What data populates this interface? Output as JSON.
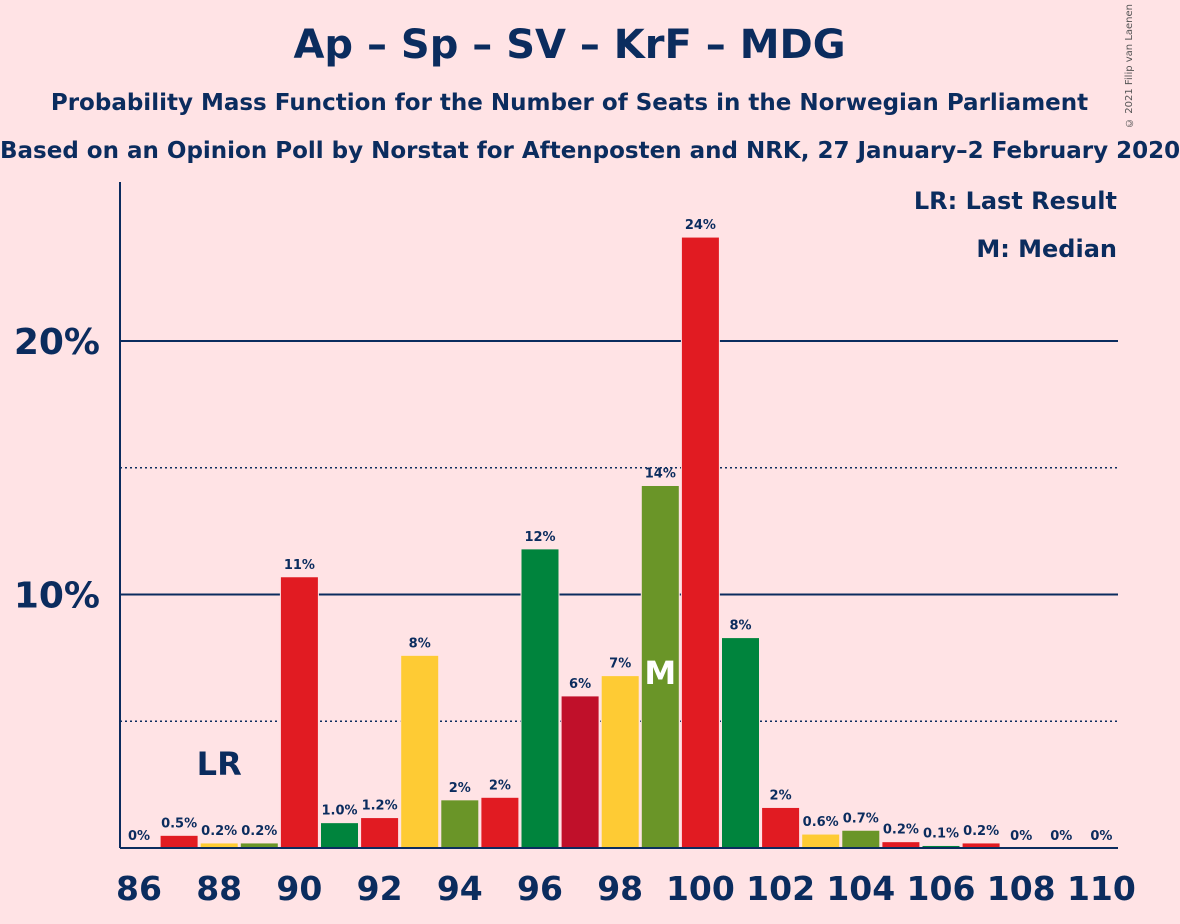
{
  "title": "Ap – Sp – SV – KrF – MDG",
  "subtitle": "Probability Mass Function for the Number of Seats in the Norwegian Parliament",
  "subtitle2": "Based on an Opinion Poll by Norstat for Aftenposten and NRK, 27 January–2 February 2020",
  "copyright": "© 2021 Filip van Laenen",
  "legend": {
    "lr": "LR: Last Result",
    "m": "M: Median"
  },
  "markers": {
    "lr_label": "LR",
    "lr_seat": 88,
    "median_label": "M",
    "median_seat": 99
  },
  "colors": {
    "Ap": "#e11b22",
    "Sp": "#00843d",
    "SV": "#c0102a",
    "KrF": "#fecb34",
    "MDG": "#6a9528",
    "axis": "#0b2c5e",
    "background": "#ffe3e5"
  },
  "chart_data": {
    "type": "bar",
    "x": [
      86,
      87,
      88,
      89,
      90,
      91,
      92,
      93,
      94,
      95,
      96,
      97,
      98,
      99,
      100,
      101,
      102,
      103,
      104,
      105,
      106,
      107,
      108,
      109,
      110
    ],
    "values": [
      0,
      0.5,
      0.2,
      0.2,
      10.7,
      1.0,
      1.2,
      7.6,
      1.9,
      2.0,
      11.8,
      6.0,
      6.8,
      14.3,
      24.1,
      8.3,
      1.6,
      0.55,
      0.7,
      0.25,
      0.1,
      0.2,
      0,
      0,
      0
    ],
    "labels": [
      "0%",
      "0.5%",
      "0.2%",
      "0.2%",
      "11%",
      "1.0%",
      "1.2%",
      "8%",
      "2%",
      "2%",
      "12%",
      "6%",
      "7%",
      "14%",
      "24%",
      "8%",
      "2%",
      "0.6%",
      "0.7%",
      "0.2%",
      "0.1%",
      "0.2%",
      "0%",
      "0%",
      "0%"
    ],
    "bar_colors": [
      "#e11b22",
      "#e11b22",
      "#fecb34",
      "#6a9528",
      "#e11b22",
      "#00843d",
      "#e11b22",
      "#fecb34",
      "#6a9528",
      "#e11b22",
      "#00843d",
      "#c0102a",
      "#fecb34",
      "#6a9528",
      "#e11b22",
      "#00843d",
      "#e11b22",
      "#fecb34",
      "#6a9528",
      "#e11b22",
      "#00843d",
      "#e11b22",
      "#fecb34",
      "#6a9528",
      "#e11b22"
    ],
    "x_ticks": [
      86,
      88,
      90,
      92,
      94,
      96,
      98,
      100,
      102,
      104,
      106,
      108,
      110
    ],
    "y_ticks": [
      {
        "value": 10,
        "label": "10%"
      },
      {
        "value": 20,
        "label": "20%"
      }
    ],
    "dotted_lines": [
      5,
      15
    ],
    "ylim": [
      0,
      26
    ],
    "xlabel": "",
    "ylabel": ""
  }
}
